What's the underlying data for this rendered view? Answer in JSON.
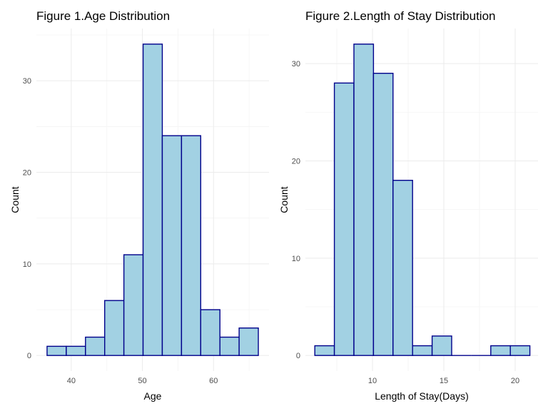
{
  "chart_data": [
    {
      "type": "bar",
      "subtype": "histogram",
      "title": "Figure 1.Age Distribution",
      "xlabel": "Age",
      "ylabel": "Count",
      "bin_width": 2.7,
      "bins": [
        {
          "start": 36.6,
          "end": 39.3,
          "count": 1
        },
        {
          "start": 39.3,
          "end": 42.0,
          "count": 1
        },
        {
          "start": 42.0,
          "end": 44.7,
          "count": 2
        },
        {
          "start": 44.7,
          "end": 47.4,
          "count": 6
        },
        {
          "start": 47.4,
          "end": 50.1,
          "count": 11
        },
        {
          "start": 50.1,
          "end": 52.8,
          "count": 34
        },
        {
          "start": 52.8,
          "end": 55.5,
          "count": 24
        },
        {
          "start": 55.5,
          "end": 58.2,
          "count": 24
        },
        {
          "start": 58.2,
          "end": 60.9,
          "count": 5
        },
        {
          "start": 60.9,
          "end": 63.6,
          "count": 2
        },
        {
          "start": 63.6,
          "end": 66.3,
          "count": 3
        }
      ],
      "xlim": [
        35.1,
        67.8
      ],
      "ylim": [
        -1.7,
        35.7
      ],
      "xticks": [
        40,
        50,
        60
      ],
      "yticks": [
        0,
        10,
        20,
        30
      ],
      "grid": true,
      "fill_color": "#a2d1e3",
      "edge_color": "#00008b"
    },
    {
      "type": "bar",
      "subtype": "histogram",
      "title": "Figure 2.Length of Stay Distribution",
      "xlabel": "Length of Stay(Days)",
      "ylabel": "Count",
      "bin_width": 1.37,
      "bins": [
        {
          "start": 5.96,
          "end": 7.33,
          "count": 1
        },
        {
          "start": 7.33,
          "end": 8.7,
          "count": 28
        },
        {
          "start": 8.7,
          "end": 10.07,
          "count": 32
        },
        {
          "start": 10.07,
          "end": 11.44,
          "count": 29
        },
        {
          "start": 11.44,
          "end": 12.81,
          "count": 18
        },
        {
          "start": 12.81,
          "end": 14.18,
          "count": 1
        },
        {
          "start": 14.18,
          "end": 15.55,
          "count": 2
        },
        {
          "start": 15.55,
          "end": 16.92,
          "count": 0
        },
        {
          "start": 16.92,
          "end": 18.29,
          "count": 0
        },
        {
          "start": 18.29,
          "end": 19.66,
          "count": 1
        },
        {
          "start": 19.66,
          "end": 21.03,
          "count": 1
        }
      ],
      "xlim": [
        5.3,
        21.6
      ],
      "ylim": [
        -1.6,
        33.6
      ],
      "xticks": [
        10,
        15,
        20
      ],
      "yticks": [
        0,
        10,
        20,
        30
      ],
      "grid": true,
      "fill_color": "#a2d1e3",
      "edge_color": "#00008b"
    }
  ]
}
